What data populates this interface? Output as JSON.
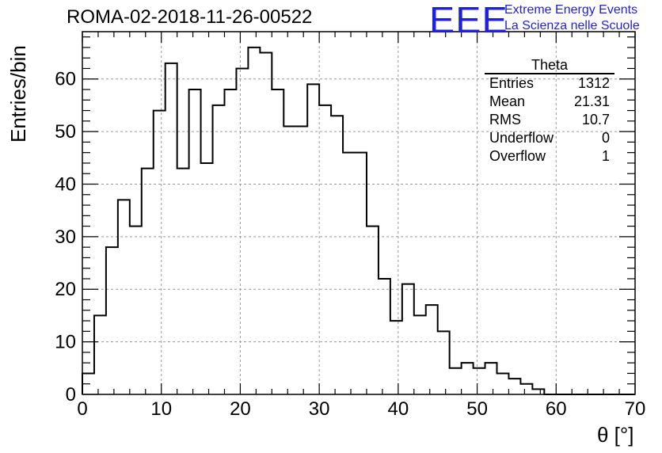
{
  "header": {
    "title": "ROMA-02-2018-11-26-00522",
    "logo_text": "EEE",
    "logo_line1": "Extreme Energy Events",
    "logo_line2": "La Scienza nelle Scuole",
    "logo_color": "#1f1fe0"
  },
  "stats_box": {
    "title": "Theta",
    "rows": [
      {
        "label": "Entries",
        "value": "1312"
      },
      {
        "label": "Mean",
        "value": "21.31"
      },
      {
        "label": "RMS",
        "value": "10.7"
      },
      {
        "label": "Underflow",
        "value": "0"
      },
      {
        "label": "Overflow",
        "value": "1"
      }
    ]
  },
  "chart_data": {
    "type": "histogram",
    "title": "ROMA-02-2018-11-26-00522",
    "xlabel": "θ [°]",
    "ylabel": "Entries/bin",
    "xlim": [
      0,
      70
    ],
    "ylim": [
      0,
      69
    ],
    "bin_width": 1.5,
    "x_ticks": [
      0,
      10,
      20,
      30,
      40,
      50,
      60,
      70
    ],
    "y_ticks": [
      0,
      10,
      20,
      30,
      40,
      50,
      60
    ],
    "grid": true,
    "bin_edges_start": 0,
    "values": [
      4,
      15,
      28,
      37,
      32,
      43,
      54,
      63,
      43,
      58,
      44,
      55,
      58,
      62,
      66,
      65,
      58,
      51,
      51,
      59,
      55,
      53,
      46,
      46,
      32,
      22,
      14,
      21,
      15,
      17,
      12,
      5,
      6,
      5,
      6,
      4,
      3,
      2,
      1,
      0,
      0,
      0,
      0,
      0,
      0,
      0,
      0
    ]
  }
}
